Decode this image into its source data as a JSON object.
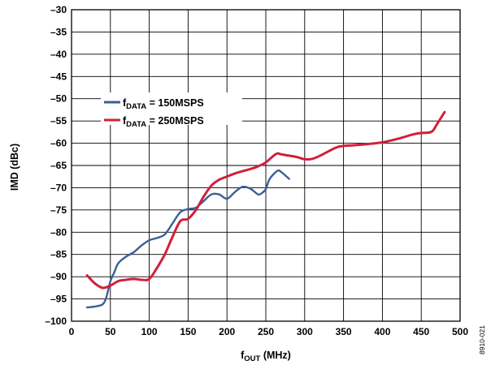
{
  "chart_data": {
    "type": "line",
    "xlabel_main": "f",
    "xlabel_sub": "OUT",
    "xlabel_rest": " (MHz)",
    "ylabel": "IMD (dBc)",
    "xlim": [
      0,
      500
    ],
    "ylim": [
      -100,
      -30
    ],
    "x_ticks": [
      0,
      50,
      100,
      150,
      200,
      250,
      300,
      350,
      400,
      450,
      500
    ],
    "y_ticks": [
      -30,
      -35,
      -40,
      -45,
      -50,
      -55,
      -60,
      -65,
      -70,
      -75,
      -80,
      -85,
      -90,
      -95,
      -100
    ],
    "x_tick_labels": [
      "0",
      "50",
      "100",
      "150",
      "200",
      "250",
      "300",
      "350",
      "400",
      "450",
      "500"
    ],
    "y_tick_labels": [
      "–30",
      "–35",
      "–40",
      "–45",
      "–50",
      "–55",
      "–60",
      "–65",
      "–70",
      "–75",
      "–80",
      "–85",
      "–90",
      "–95",
      "–100"
    ],
    "grid": true,
    "legend_position": "upper-left",
    "figure_id": "8910-021",
    "series": [
      {
        "name_main": "f",
        "name_sub": "DATA",
        "name_rest": " = 150MSPS",
        "color": "#3a5f96",
        "points": [
          [
            20,
            -96.9
          ],
          [
            30,
            -96.7
          ],
          [
            40,
            -96.2
          ],
          [
            45,
            -94.5
          ],
          [
            50,
            -91
          ],
          [
            55,
            -89
          ],
          [
            60,
            -87
          ],
          [
            70,
            -85.5
          ],
          [
            80,
            -84.5
          ],
          [
            90,
            -83
          ],
          [
            100,
            -81.8
          ],
          [
            110,
            -81.3
          ],
          [
            120,
            -80.5
          ],
          [
            130,
            -78
          ],
          [
            140,
            -75.5
          ],
          [
            150,
            -74.8
          ],
          [
            160,
            -74.5
          ],
          [
            170,
            -73
          ],
          [
            180,
            -71.5
          ],
          [
            190,
            -71.5
          ],
          [
            200,
            -72.5
          ],
          [
            210,
            -71
          ],
          [
            220,
            -69.8
          ],
          [
            230,
            -70.2
          ],
          [
            240,
            -71.5
          ],
          [
            245,
            -71.2
          ],
          [
            250,
            -70.3
          ],
          [
            255,
            -68
          ],
          [
            265,
            -66.2
          ],
          [
            270,
            -66.5
          ],
          [
            280,
            -68
          ]
        ]
      },
      {
        "name_main": "f",
        "name_sub": "DATA",
        "name_rest": " = 250MSPS",
        "color": "#d21f3c",
        "points": [
          [
            20,
            -89.7
          ],
          [
            30,
            -91.5
          ],
          [
            40,
            -92.5
          ],
          [
            50,
            -92
          ],
          [
            60,
            -91
          ],
          [
            70,
            -90.7
          ],
          [
            80,
            -90.5
          ],
          [
            90,
            -90.7
          ],
          [
            100,
            -90.5
          ],
          [
            110,
            -88
          ],
          [
            120,
            -85
          ],
          [
            130,
            -81
          ],
          [
            140,
            -77.5
          ],
          [
            150,
            -77
          ],
          [
            160,
            -75
          ],
          [
            170,
            -72
          ],
          [
            180,
            -69.5
          ],
          [
            190,
            -68.2
          ],
          [
            200,
            -67.5
          ],
          [
            210,
            -66.8
          ],
          [
            220,
            -66.3
          ],
          [
            230,
            -65.8
          ],
          [
            240,
            -65.2
          ],
          [
            250,
            -64.3
          ],
          [
            260,
            -62.8
          ],
          [
            265,
            -62.3
          ],
          [
            270,
            -62.5
          ],
          [
            280,
            -62.8
          ],
          [
            290,
            -63.1
          ],
          [
            300,
            -63.6
          ],
          [
            310,
            -63.5
          ],
          [
            320,
            -62.8
          ],
          [
            340,
            -61
          ],
          [
            350,
            -60.6
          ],
          [
            360,
            -60.5
          ],
          [
            380,
            -60.2
          ],
          [
            400,
            -59.8
          ],
          [
            420,
            -59
          ],
          [
            440,
            -58
          ],
          [
            450,
            -57.7
          ],
          [
            460,
            -57.6
          ],
          [
            465,
            -57.2
          ],
          [
            470,
            -55.8
          ],
          [
            480,
            -53
          ]
        ]
      }
    ]
  }
}
